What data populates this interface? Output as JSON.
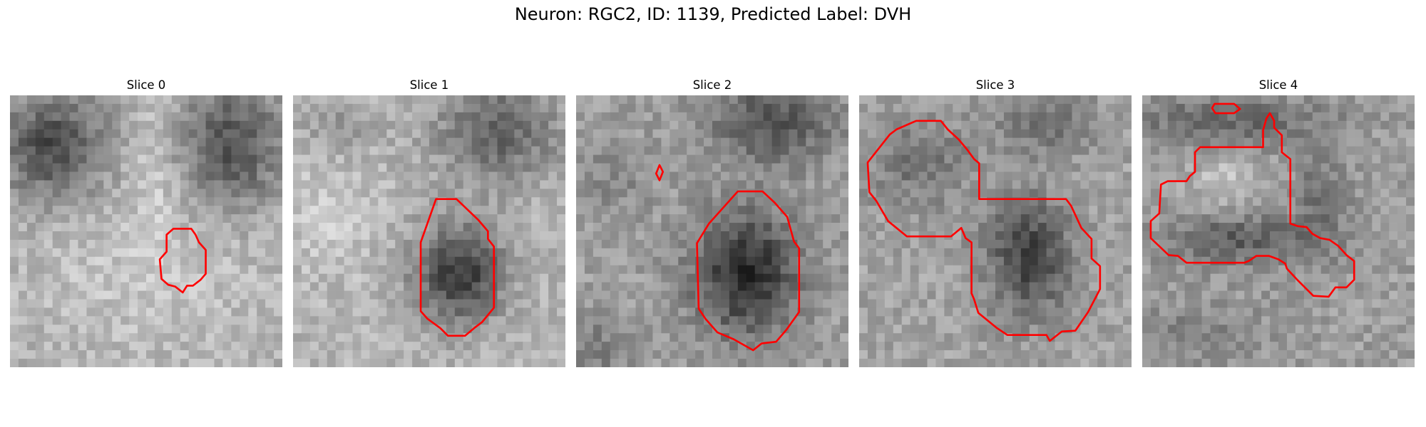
{
  "figure": {
    "title": "Neuron: RGC2, ID: 1139, Predicted Label: DVH"
  },
  "panels": [
    {
      "title": "Slice 0"
    },
    {
      "title": "Slice 1"
    },
    {
      "title": "Slice 2"
    },
    {
      "title": "Slice 3"
    },
    {
      "title": "Slice 4"
    }
  ],
  "colors": {
    "contour": "#ff0000",
    "background": "#ffffff"
  },
  "image": {
    "colormap": "grayscale",
    "grid": "32x32 pixels per slice"
  }
}
